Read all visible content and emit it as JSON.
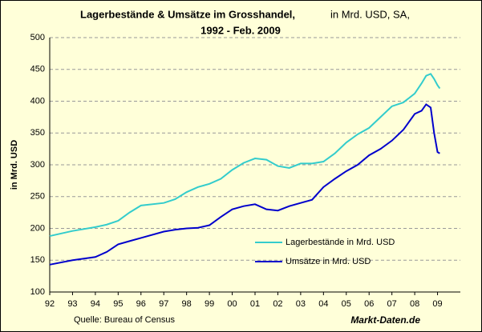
{
  "chart_data": {
    "type": "line",
    "title": "Lagerbestände & Umsätze im Grosshandel,",
    "subtitle": "in Mrd. USD, SA,",
    "title_line2": "1992 - Feb. 2009",
    "y_label": "in Mrd. USD",
    "source": "Quelle: Bureau of Census",
    "watermark": "Markt-Daten.de",
    "x": [
      1992,
      1993,
      1994,
      1994.5,
      1995,
      1995.5,
      1996,
      1997,
      1997.5,
      1998,
      1998.5,
      1999,
      1999.5,
      2000,
      2000.5,
      2001,
      2001.5,
      2002,
      2002.5,
      2003,
      2003.5,
      2004,
      2004.5,
      2005,
      2005.5,
      2006,
      2006.5,
      2007,
      2007.5,
      2008,
      2008.3,
      2008.5,
      2008.7,
      2008.85,
      2009,
      2009.1
    ],
    "series": [
      {
        "name": "Lagerbestände in Mrd. USD",
        "color": "#33cccc",
        "values": [
          188,
          196,
          202,
          206,
          212,
          225,
          236,
          240,
          246,
          257,
          265,
          270,
          278,
          292,
          303,
          310,
          308,
          298,
          295,
          302,
          302,
          305,
          318,
          335,
          348,
          358,
          375,
          392,
          398,
          412,
          428,
          440,
          443,
          435,
          425,
          420
        ]
      },
      {
        "name": "Umsätze in Mrd. USD",
        "color": "#0000cc",
        "values": [
          143,
          150,
          155,
          163,
          175,
          180,
          185,
          195,
          198,
          200,
          201,
          205,
          218,
          230,
          235,
          238,
          230,
          228,
          235,
          240,
          245,
          265,
          278,
          290,
          300,
          315,
          325,
          338,
          355,
          380,
          385,
          395,
          390,
          350,
          320,
          318
        ]
      }
    ],
    "xlim": [
      1992,
      2010
    ],
    "xticks": [
      {
        "value": 1992,
        "label": "92"
      },
      {
        "value": 1993,
        "label": "93"
      },
      {
        "value": 1994,
        "label": "94"
      },
      {
        "value": 1995,
        "label": "95"
      },
      {
        "value": 1996,
        "label": "96"
      },
      {
        "value": 1997,
        "label": "97"
      },
      {
        "value": 1998,
        "label": "98"
      },
      {
        "value": 1999,
        "label": "99"
      },
      {
        "value": 2000,
        "label": "00"
      },
      {
        "value": 2001,
        "label": "01"
      },
      {
        "value": 2002,
        "label": "02"
      },
      {
        "value": 2003,
        "label": "03"
      },
      {
        "value": 2004,
        "label": "04"
      },
      {
        "value": 2005,
        "label": "05"
      },
      {
        "value": 2006,
        "label": "06"
      },
      {
        "value": 2007,
        "label": "07"
      },
      {
        "value": 2008,
        "label": "08"
      },
      {
        "value": 2009,
        "label": "09"
      }
    ],
    "ylim": [
      100,
      500
    ],
    "yticks": [
      100,
      150,
      200,
      250,
      300,
      350,
      400,
      450,
      500
    ],
    "grid": true,
    "legend": "lower right"
  }
}
